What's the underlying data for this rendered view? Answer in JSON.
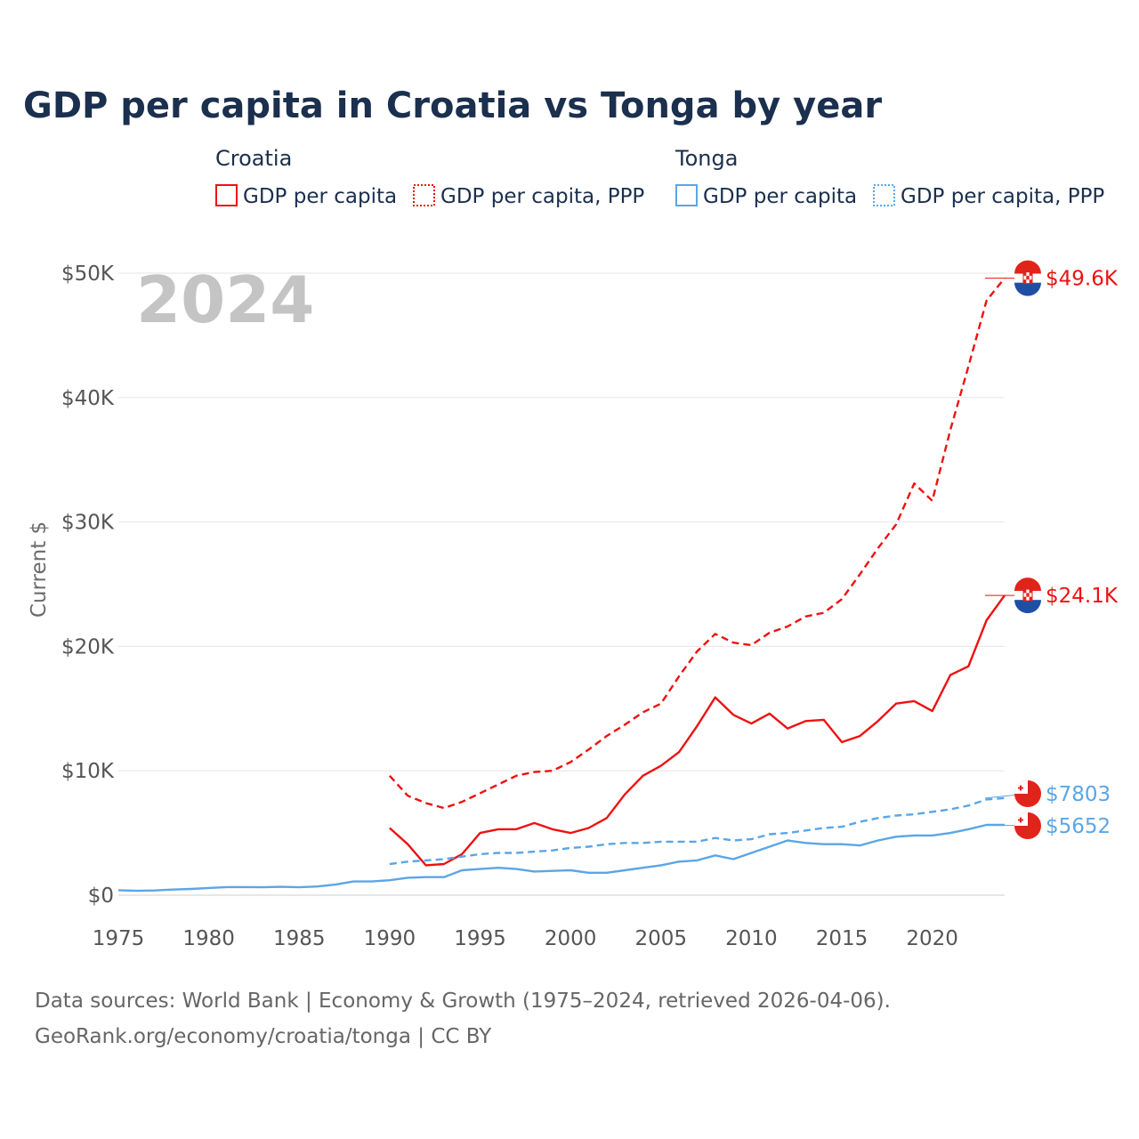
{
  "colors": {
    "croatia": "#ee1111",
    "tonga": "#5aa6e6",
    "title": "#1b2f4e",
    "grid": "#e6e6e6",
    "tick": "#555555",
    "watermark": "#c4c4c4"
  },
  "chart_data": {
    "type": "line",
    "title": "GDP per capita in Croatia vs Tonga by year",
    "ylabel": "Current $",
    "xlabel": "",
    "year_display": "2024",
    "xlim": [
      1975,
      2024
    ],
    "ylim": [
      0,
      50000
    ],
    "x_ticks": [
      "1975",
      "1980",
      "1985",
      "1990",
      "1995",
      "2000",
      "2005",
      "2010",
      "2015",
      "2020"
    ],
    "y_ticks": [
      {
        "value": 0,
        "label": "$0"
      },
      {
        "value": 10000,
        "label": "$10K"
      },
      {
        "value": 20000,
        "label": "$20K"
      },
      {
        "value": 30000,
        "label": "$30K"
      },
      {
        "value": 40000,
        "label": "$40K"
      },
      {
        "value": 50000,
        "label": "$50K"
      }
    ],
    "legend": [
      {
        "group": "Croatia",
        "items": [
          "GDP per capita",
          "GDP per capita, PPP"
        ]
      },
      {
        "group": "Tonga",
        "items": [
          "GDP per capita",
          "GDP per capita, PPP"
        ]
      }
    ],
    "series": [
      {
        "name": "Croatia GDP per capita, PPP",
        "country": "Croatia",
        "dashed": true,
        "end_label": "$49.6K",
        "points": [
          [
            1990,
            9600
          ],
          [
            1991,
            8000
          ],
          [
            1992,
            7400
          ],
          [
            1993,
            7000
          ],
          [
            1994,
            7500
          ],
          [
            1995,
            8200
          ],
          [
            1996,
            8900
          ],
          [
            1997,
            9600
          ],
          [
            1998,
            9900
          ],
          [
            1999,
            10000
          ],
          [
            2000,
            10700
          ],
          [
            2001,
            11700
          ],
          [
            2002,
            12800
          ],
          [
            2003,
            13700
          ],
          [
            2004,
            14700
          ],
          [
            2005,
            15400
          ],
          [
            2006,
            17600
          ],
          [
            2007,
            19600
          ],
          [
            2008,
            21000
          ],
          [
            2009,
            20300
          ],
          [
            2010,
            20100
          ],
          [
            2011,
            21100
          ],
          [
            2012,
            21600
          ],
          [
            2013,
            22400
          ],
          [
            2014,
            22700
          ],
          [
            2015,
            23800
          ],
          [
            2016,
            25800
          ],
          [
            2017,
            27900
          ],
          [
            2018,
            29800
          ],
          [
            2019,
            33100
          ],
          [
            2020,
            31700
          ],
          [
            2021,
            37400
          ],
          [
            2022,
            42500
          ],
          [
            2023,
            47800
          ],
          [
            2024,
            49600
          ]
        ]
      },
      {
        "name": "Croatia GDP per capita",
        "country": "Croatia",
        "dashed": false,
        "end_label": "$24.1K",
        "points": [
          [
            1990,
            5400
          ],
          [
            1991,
            4100
          ],
          [
            1992,
            2400
          ],
          [
            1993,
            2500
          ],
          [
            1994,
            3300
          ],
          [
            1995,
            5000
          ],
          [
            1996,
            5300
          ],
          [
            1997,
            5300
          ],
          [
            1998,
            5800
          ],
          [
            1999,
            5300
          ],
          [
            2000,
            5000
          ],
          [
            2001,
            5400
          ],
          [
            2002,
            6200
          ],
          [
            2003,
            8100
          ],
          [
            2004,
            9600
          ],
          [
            2005,
            10400
          ],
          [
            2006,
            11500
          ],
          [
            2007,
            13600
          ],
          [
            2008,
            15900
          ],
          [
            2009,
            14500
          ],
          [
            2010,
            13800
          ],
          [
            2011,
            14600
          ],
          [
            2012,
            13400
          ],
          [
            2013,
            14000
          ],
          [
            2014,
            14100
          ],
          [
            2015,
            12300
          ],
          [
            2016,
            12800
          ],
          [
            2017,
            14000
          ],
          [
            2018,
            15400
          ],
          [
            2019,
            15600
          ],
          [
            2020,
            14800
          ],
          [
            2021,
            17700
          ],
          [
            2022,
            18400
          ],
          [
            2023,
            22100
          ],
          [
            2024,
            24100
          ]
        ]
      },
      {
        "name": "Tonga GDP per capita, PPP",
        "country": "Tonga",
        "dashed": true,
        "end_label": "$7803",
        "points": [
          [
            1990,
            2500
          ],
          [
            1991,
            2700
          ],
          [
            1992,
            2800
          ],
          [
            1993,
            2900
          ],
          [
            1994,
            3100
          ],
          [
            1995,
            3300
          ],
          [
            1996,
            3400
          ],
          [
            1997,
            3400
          ],
          [
            1998,
            3500
          ],
          [
            1999,
            3600
          ],
          [
            2000,
            3800
          ],
          [
            2001,
            3900
          ],
          [
            2002,
            4100
          ],
          [
            2003,
            4200
          ],
          [
            2004,
            4200
          ],
          [
            2005,
            4300
          ],
          [
            2006,
            4300
          ],
          [
            2007,
            4300
          ],
          [
            2008,
            4600
          ],
          [
            2009,
            4400
          ],
          [
            2010,
            4500
          ],
          [
            2011,
            4900
          ],
          [
            2012,
            5000
          ],
          [
            2013,
            5200
          ],
          [
            2014,
            5400
          ],
          [
            2015,
            5500
          ],
          [
            2016,
            5900
          ],
          [
            2017,
            6200
          ],
          [
            2018,
            6400
          ],
          [
            2019,
            6500
          ],
          [
            2020,
            6700
          ],
          [
            2021,
            6900
          ],
          [
            2022,
            7200
          ],
          [
            2023,
            7700
          ],
          [
            2024,
            7803
          ]
        ]
      },
      {
        "name": "Tonga GDP per capita",
        "country": "Tonga",
        "dashed": false,
        "end_label": "$5652",
        "points": [
          [
            1975,
            400
          ],
          [
            1976,
            350
          ],
          [
            1977,
            380
          ],
          [
            1978,
            450
          ],
          [
            1979,
            500
          ],
          [
            1980,
            580
          ],
          [
            1981,
            650
          ],
          [
            1982,
            650
          ],
          [
            1983,
            640
          ],
          [
            1984,
            670
          ],
          [
            1985,
            640
          ],
          [
            1986,
            700
          ],
          [
            1987,
            850
          ],
          [
            1988,
            1100
          ],
          [
            1989,
            1100
          ],
          [
            1990,
            1200
          ],
          [
            1991,
            1400
          ],
          [
            1992,
            1450
          ],
          [
            1993,
            1450
          ],
          [
            1994,
            2000
          ],
          [
            1995,
            2100
          ],
          [
            1996,
            2200
          ],
          [
            1997,
            2100
          ],
          [
            1998,
            1900
          ],
          [
            1999,
            1950
          ],
          [
            2000,
            2000
          ],
          [
            2001,
            1800
          ],
          [
            2002,
            1800
          ],
          [
            2003,
            2000
          ],
          [
            2004,
            2200
          ],
          [
            2005,
            2400
          ],
          [
            2006,
            2700
          ],
          [
            2007,
            2800
          ],
          [
            2008,
            3200
          ],
          [
            2009,
            2900
          ],
          [
            2010,
            3400
          ],
          [
            2011,
            3900
          ],
          [
            2012,
            4400
          ],
          [
            2013,
            4200
          ],
          [
            2014,
            4100
          ],
          [
            2015,
            4100
          ],
          [
            2016,
            4000
          ],
          [
            2017,
            4400
          ],
          [
            2018,
            4700
          ],
          [
            2019,
            4800
          ],
          [
            2020,
            4800
          ],
          [
            2021,
            5000
          ],
          [
            2022,
            5300
          ],
          [
            2023,
            5650
          ],
          [
            2024,
            5652
          ]
        ]
      }
    ]
  },
  "source": {
    "line1": "Data sources: World Bank | Economy & Growth (1975–2024, retrieved 2026-04-06).",
    "line2": "GeoRank.org/economy/croatia/tonga | CC BY"
  }
}
